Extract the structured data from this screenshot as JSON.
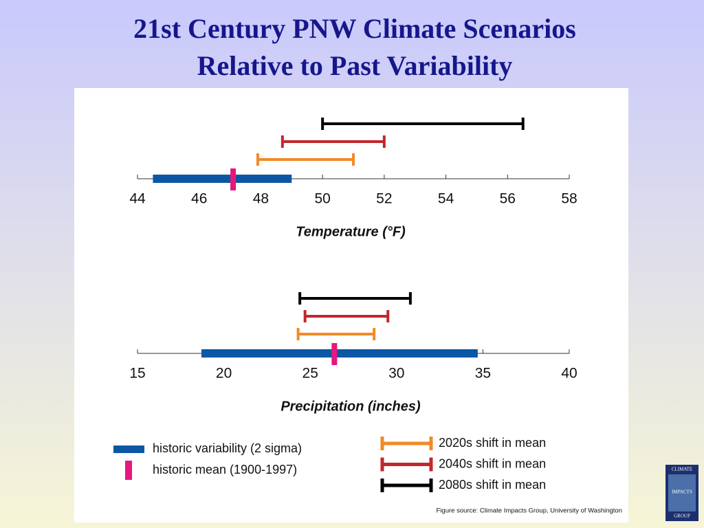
{
  "title": [
    "21st Century PNW Climate Scenarios",
    "Relative to Past Variability"
  ],
  "legend": [
    {
      "name": "historic variability (2 sigma)",
      "color": "#0b57a4"
    },
    {
      "name": "historic mean (1900-1997)",
      "color": "#e6177f"
    },
    {
      "name": "2020s shift in mean",
      "color": "#f28a26"
    },
    {
      "name": "2040s shift in mean",
      "color": "#c1272d"
    },
    {
      "name": "2080s shift in mean",
      "color": "#000000"
    }
  ],
  "source": "Figure source: Climate Impacts Group, University of Washington",
  "logo": [
    "CLIMATE",
    "IMPACTS",
    "GROUP"
  ],
  "chart_data": [
    {
      "type": "range",
      "xlabel": "Temperature (°F)",
      "xlim": [
        44,
        58
      ],
      "xticks": [
        44,
        46,
        48,
        50,
        52,
        54,
        56,
        58
      ],
      "variability": [
        44.5,
        49.0
      ],
      "mean": 47.1,
      "shifts": [
        [
          47.9,
          51.0
        ],
        [
          48.7,
          52.0
        ],
        [
          50.0,
          56.5
        ]
      ]
    },
    {
      "type": "range",
      "xlabel": "Precipitation (inches)",
      "xlim": [
        15,
        40
      ],
      "xticks": [
        15,
        20,
        25,
        30,
        35,
        40
      ],
      "variability": [
        18.7,
        34.7
      ],
      "mean": 26.4,
      "shifts": [
        [
          24.3,
          28.7
        ],
        [
          24.7,
          29.5
        ],
        [
          24.4,
          30.8
        ]
      ]
    }
  ]
}
